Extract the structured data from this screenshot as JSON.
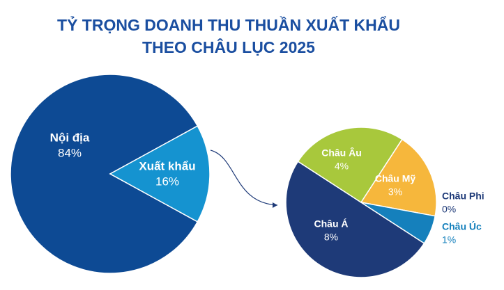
{
  "title": [
    "TỶ TRỌNG DOANH THU THUẦN XUẤT KHẨU",
    "THEO CHÂU LỤC 2025"
  ],
  "chart_data": [
    {
      "type": "pie",
      "categories": [
        "Nội địa",
        "Xuất khẩu"
      ],
      "values": [
        84,
        16
      ],
      "value_labels": [
        "84%",
        "16%"
      ],
      "colors": [
        "#0d4a94",
        "#1593d0"
      ]
    },
    {
      "type": "pie",
      "categories": [
        "Châu Á",
        "Châu Âu",
        "Châu Mỹ",
        "Châu Phi",
        "Châu Úc"
      ],
      "values": [
        8,
        4,
        3,
        0,
        1
      ],
      "value_labels": [
        "8%",
        "4%",
        "3%",
        "0%",
        "1%"
      ],
      "colors": [
        "#1e3a78",
        "#a8c83c",
        "#f6b73c",
        "#e3e9ef",
        "#1580bc"
      ]
    }
  ]
}
